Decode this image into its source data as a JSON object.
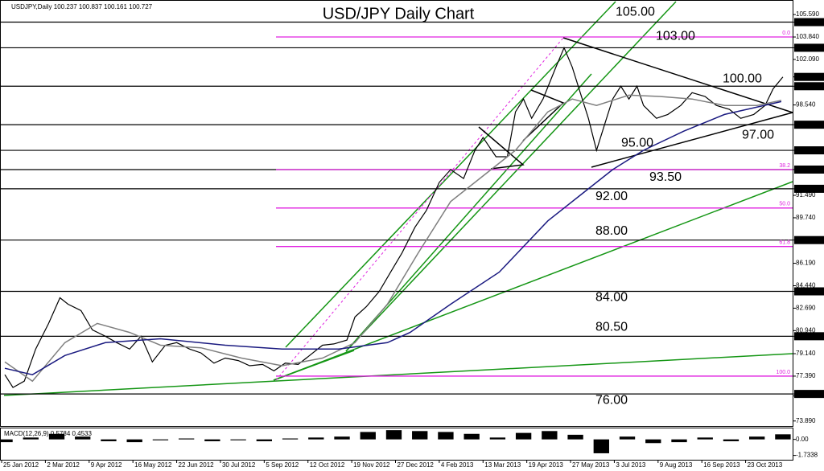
{
  "chart_data": {
    "type": "line",
    "title": "USD/JPY Daily Chart",
    "subtitle": "USDJPY,Daily 100.237 100.837 100.161 100.727",
    "xlim": [
      -11,
      478
    ],
    "ylim": [
      73.5,
      106.6
    ],
    "xticks": [
      {
        "value": -10,
        "label": "25 Jan 2012"
      },
      {
        "value": 17,
        "label": "2 Mar 2012"
      },
      {
        "value": 44,
        "label": "9 Apr 2012"
      },
      {
        "value": 71,
        "label": "16 May 2012"
      },
      {
        "value": 98,
        "label": "22 Jun 2012"
      },
      {
        "value": 125,
        "label": "30 Jul 2012"
      },
      {
        "value": 152,
        "label": "5 Sep 2012"
      },
      {
        "value": 179,
        "label": "12 Oct 2012"
      },
      {
        "value": 206,
        "label": "19 Nov 2012"
      },
      {
        "value": 233,
        "label": "27 Dec 2012"
      },
      {
        "value": 260,
        "label": "4 Feb 2013"
      },
      {
        "value": 287,
        "label": "13 Mar 2013"
      },
      {
        "value": 314,
        "label": "19 Apr 2013"
      },
      {
        "value": 341,
        "label": "27 May 2013"
      },
      {
        "value": 368,
        "label": "3 Jul 2013"
      },
      {
        "value": 395,
        "label": "9 Aug 2013"
      },
      {
        "value": 422,
        "label": "16 Sep 2013"
      },
      {
        "value": 449,
        "label": "23 Oct 2013"
      }
    ],
    "yticks": [
      {
        "value": 105.59,
        "label": "105.590"
      },
      {
        "value": 105,
        "label": "105.000"
      },
      {
        "value": 103.84,
        "label": "103.840"
      },
      {
        "value": 103,
        "label": "103.000"
      },
      {
        "value": 102.09,
        "label": "102.090"
      },
      {
        "value": 100.727,
        "label": "100.727"
      },
      {
        "value": 100,
        "label": "100.000"
      },
      {
        "value": 98.54,
        "label": "98.540"
      },
      {
        "value": 97,
        "label": "97.000"
      },
      {
        "value": 95,
        "label": "95.000"
      },
      {
        "value": 93.5,
        "label": "93.500"
      },
      {
        "value": 92,
        "label": "92.000"
      },
      {
        "value": 91.49,
        "label": "91.490"
      },
      {
        "value": 89.74,
        "label": "89.740"
      },
      {
        "value": 88,
        "label": "88.000"
      },
      {
        "value": 86.19,
        "label": "86.190"
      },
      {
        "value": 84.44,
        "label": "84.440"
      },
      {
        "value": 84,
        "label": "84.000"
      },
      {
        "value": 82.69,
        "label": "82.690"
      },
      {
        "value": 80.94,
        "label": "80.940"
      },
      {
        "value": 80.5,
        "label": "80.500"
      },
      {
        "value": 79.14,
        "label": "79.140"
      },
      {
        "value": 77.39,
        "label": "77.390"
      },
      {
        "value": 76,
        "label": "76.000"
      },
      {
        "value": 75.84,
        "label": "75.840"
      },
      {
        "value": 73.89,
        "label": "73.890"
      }
    ],
    "series": [
      {
        "color": "#000000",
        "x": [
          -8,
          -3,
          4,
          11,
          19,
          26,
          31,
          39,
          46,
          54,
          61,
          69,
          76,
          83,
          91,
          98,
          106,
          113,
          121,
          128,
          136,
          143,
          151,
          158,
          165,
          173,
          180,
          188,
          195,
          203,
          208,
          215,
          223,
          230,
          237,
          245,
          252,
          260,
          267,
          275,
          282,
          287,
          295,
          302,
          307,
          312,
          317,
          324,
          332,
          337,
          342,
          347,
          352,
          357,
          362,
          367,
          372,
          377,
          382,
          386,
          394,
          401,
          409,
          416,
          424,
          431,
          439,
          446,
          454,
          461,
          466,
          472
        ],
        "values": [
          77.5,
          76.5,
          77.0,
          79.5,
          81.5,
          83.5,
          83.0,
          82.5,
          81.0,
          80.5,
          80.0,
          79.5,
          80.5,
          78.5,
          79.8,
          80.0,
          79.5,
          79.2,
          78.4,
          78.8,
          78.6,
          78.2,
          78.3,
          77.8,
          78.4,
          78.3,
          79.0,
          79.8,
          79.9,
          80.2,
          82.0,
          82.8,
          84.0,
          85.5,
          87.0,
          89.0,
          90.3,
          92.5,
          93.5,
          92.8,
          95.0,
          96.0,
          94.5,
          94.5,
          98.0,
          99.0,
          97.5,
          99.0,
          101.5,
          103.0,
          101.5,
          99.5,
          97.5,
          95.0,
          97.0,
          99.0,
          100.0,
          99.0,
          100.0,
          98.5,
          97.5,
          97.8,
          98.5,
          99.5,
          99.2,
          98.5,
          98.2,
          97.5,
          97.8,
          98.5,
          99.8,
          100.727
        ]
      },
      {
        "color": "#7f7f7f",
        "x": [
          -8,
          9,
          29,
          49,
          69,
          88,
          113,
          138,
          163,
          188,
          208,
          228,
          247,
          267,
          287,
          307,
          327,
          342,
          357,
          377,
          396,
          416,
          436,
          456,
          471
        ],
        "values": [
          78.5,
          77.0,
          80.0,
          81.5,
          80.8,
          79.8,
          79.6,
          78.8,
          78.2,
          78.8,
          80.0,
          83.0,
          87.0,
          91.0,
          93.0,
          95.0,
          98.0,
          99.0,
          98.5,
          99.3,
          99.2,
          99.0,
          98.5,
          98.5,
          98.9
        ]
      },
      {
        "color": "#1a1a80",
        "x": [
          -8,
          9,
          29,
          54,
          88,
          128,
          163,
          198,
          228,
          242,
          267,
          297,
          327,
          347,
          367,
          386,
          411,
          436,
          471
        ],
        "values": [
          78.0,
          77.5,
          79.0,
          80.0,
          80.3,
          79.8,
          79.5,
          79.5,
          80.0,
          80.8,
          83.0,
          85.5,
          89.5,
          91.5,
          93.5,
          95.0,
          96.5,
          97.8,
          98.8
        ]
      }
    ],
    "levels": [
      {
        "value": 105,
        "label": "105.00"
      },
      {
        "value": 103,
        "label": "103.00"
      },
      {
        "value": 100,
        "label": "100.00"
      },
      {
        "value": 97,
        "label": "97.00"
      },
      {
        "value": 95,
        "label": "95.00"
      },
      {
        "value": 93.5,
        "label": "93.50"
      },
      {
        "value": 92,
        "label": "92.00"
      },
      {
        "value": 88,
        "label": "88.00"
      },
      {
        "value": 84,
        "label": "84.00"
      },
      {
        "value": 80.5,
        "label": "80.50"
      },
      {
        "value": 76,
        "label": "76.00"
      }
    ],
    "level_color": "#000000",
    "fib_levels": [
      {
        "value": 103.84,
        "label": "0.0"
      },
      {
        "value": 93.5,
        "label": "38.2"
      },
      {
        "value": 90.5,
        "label": "50.0"
      },
      {
        "value": 87.5,
        "label": "61.8"
      },
      {
        "value": 77.39,
        "label": "100.0"
      }
    ],
    "fib_color": "#e020e0",
    "macd": {
      "title": "MACD(12,26,9) 0.5784 0.4533",
      "color": "#000000",
      "ylim": [
        -2.2,
        1.1
      ],
      "yticks": [
        {
          "value": 0,
          "label": "0.00"
        },
        {
          "value": -1.7338,
          "label": "-1.7338"
        }
      ],
      "x": [
        -8,
        8,
        24,
        40,
        56,
        72,
        88,
        104,
        120,
        136,
        152,
        168,
        184,
        200,
        216,
        232,
        248,
        264,
        280,
        296,
        312,
        328,
        344,
        360,
        376,
        392,
        408,
        424,
        440,
        456,
        472
      ],
      "values": [
        -0.3,
        0.2,
        0.6,
        0.3,
        -0.2,
        -0.3,
        -0.1,
        0.1,
        -0.2,
        -0.1,
        -0.2,
        0.1,
        0.2,
        0.3,
        0.8,
        1.0,
        0.9,
        0.8,
        0.6,
        0.2,
        0.7,
        0.9,
        0.5,
        -1.5,
        0.3,
        -0.4,
        -0.3,
        0.2,
        -0.2,
        0.3,
        0.55
      ]
    }
  }
}
